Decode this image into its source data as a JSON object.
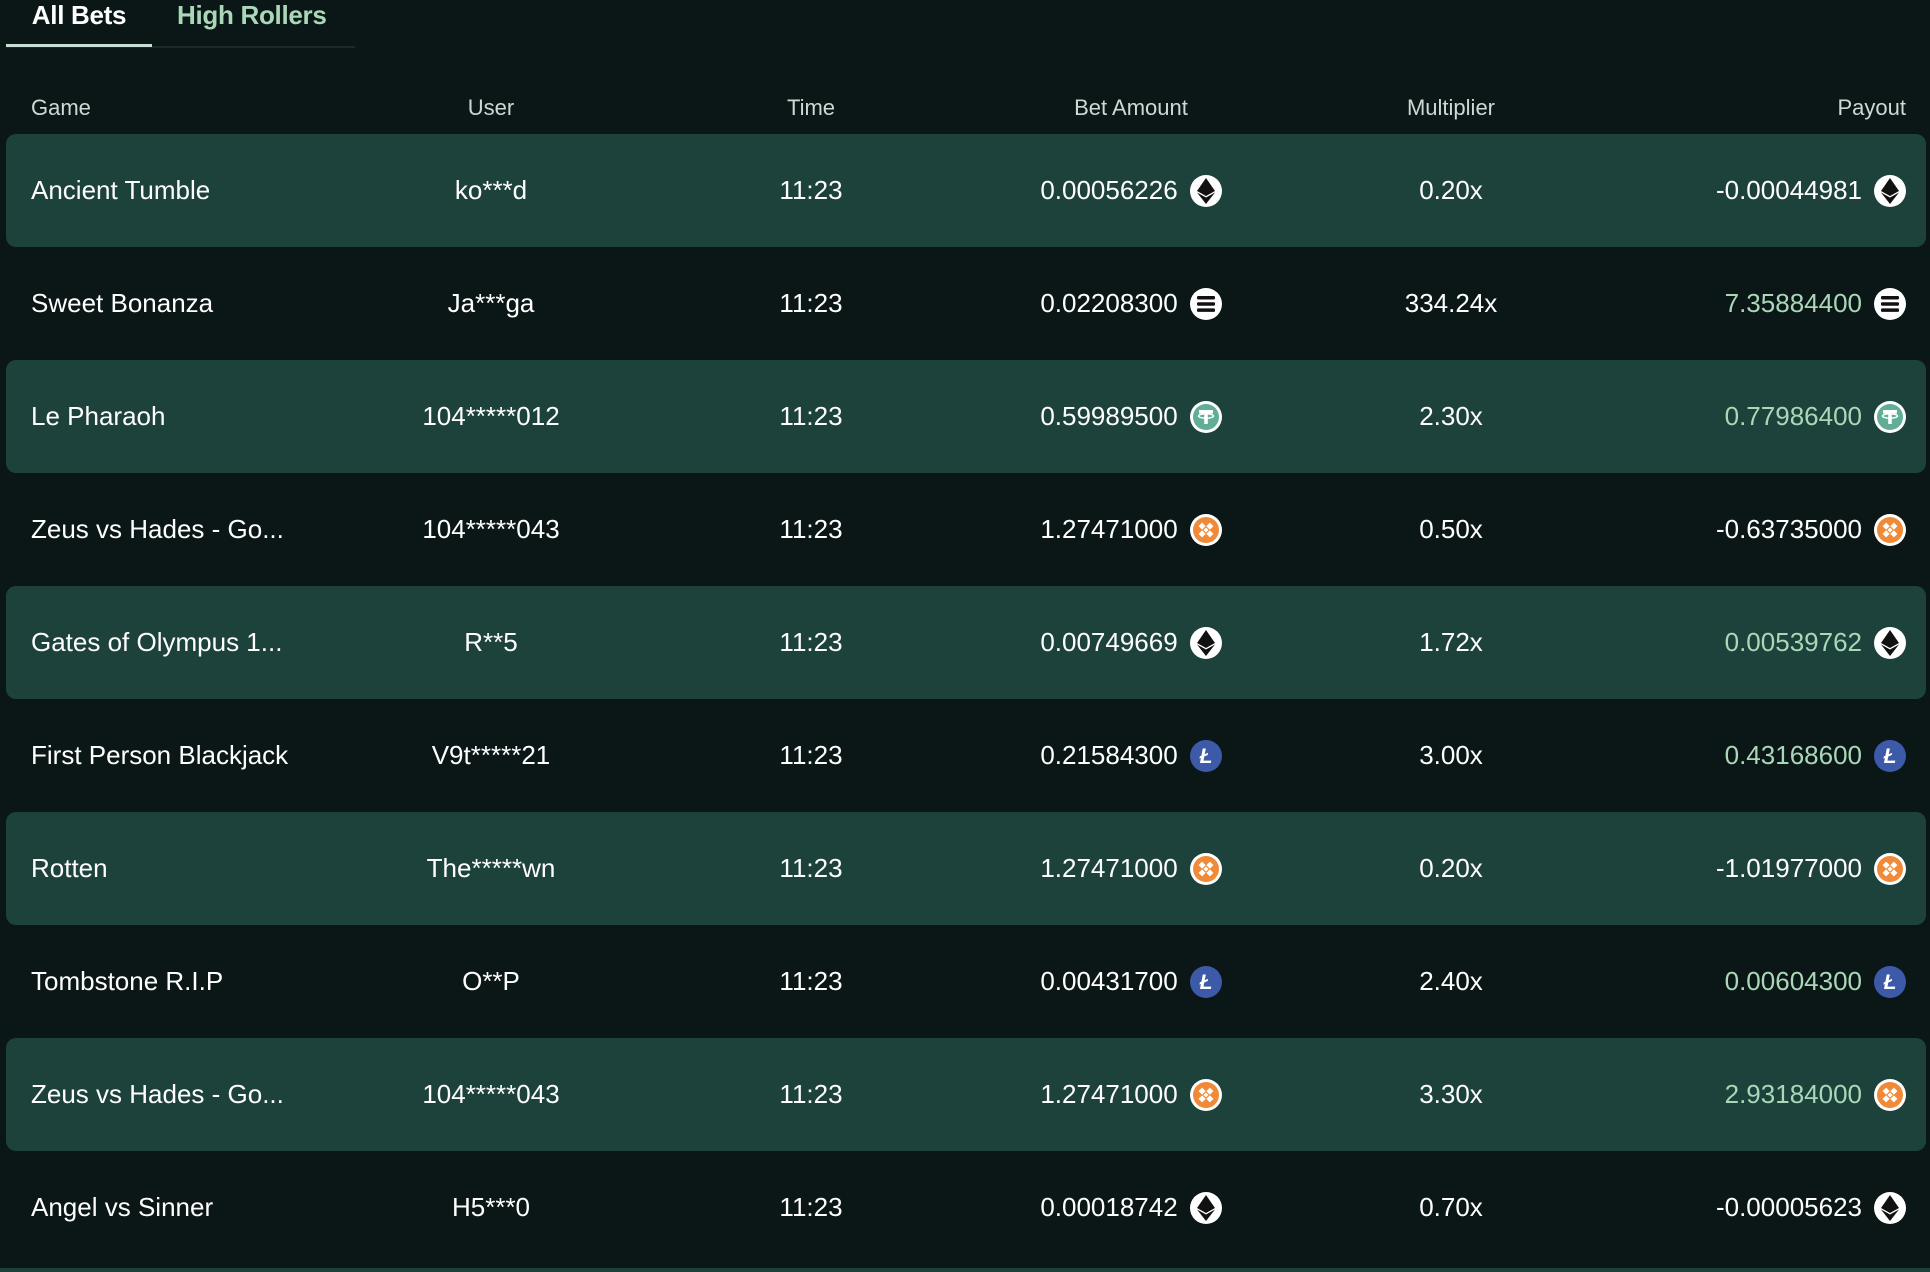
{
  "tabs": [
    {
      "label": "All Bets",
      "active": true
    },
    {
      "label": "High Rollers",
      "active": false
    }
  ],
  "columns": {
    "game": "Game",
    "user": "User",
    "time": "Time",
    "bet": "Bet Amount",
    "multiplier": "Multiplier",
    "payout": "Payout"
  },
  "colors": {
    "background": "#0b1716",
    "row_highlight": "#1d423b",
    "positive_payout": "#a9d7b8",
    "text": "#ffffff"
  },
  "rows": [
    {
      "game": "Ancient Tumble",
      "user": "ko***d",
      "time": "11:23",
      "bet": "0.00056226",
      "coin": "eth-icon",
      "multiplier": "0.20x",
      "payout": "-0.00044981",
      "positive": false
    },
    {
      "game": "Sweet Bonanza",
      "user": "Ja***ga",
      "time": "11:23",
      "bet": "0.02208300",
      "coin": "sol-icon",
      "multiplier": "334.24x",
      "payout": "7.35884400",
      "positive": true
    },
    {
      "game": "Le Pharaoh",
      "user": "104*****012",
      "time": "11:23",
      "bet": "0.59989500",
      "coin": "usdt-icon",
      "multiplier": "2.30x",
      "payout": "0.77986400",
      "positive": true
    },
    {
      "game": "Zeus vs Hades - Go...",
      "user": "104*****043",
      "time": "11:23",
      "bet": "1.27471000",
      "coin": "bnb-icon",
      "multiplier": "0.50x",
      "payout": "-0.63735000",
      "positive": false
    },
    {
      "game": "Gates of Olympus 1...",
      "user": "R**5",
      "time": "11:23",
      "bet": "0.00749669",
      "coin": "eth-icon",
      "multiplier": "1.72x",
      "payout": "0.00539762",
      "positive": true
    },
    {
      "game": "First Person Blackjack",
      "user": "V9t*****21",
      "time": "11:23",
      "bet": "0.21584300",
      "coin": "ltc-icon",
      "multiplier": "3.00x",
      "payout": "0.43168600",
      "positive": true
    },
    {
      "game": "Rotten",
      "user": "The*****wn",
      "time": "11:23",
      "bet": "1.27471000",
      "coin": "bnb-icon",
      "multiplier": "0.20x",
      "payout": "-1.01977000",
      "positive": false
    },
    {
      "game": "Tombstone R.I.P",
      "user": "O**P",
      "time": "11:23",
      "bet": "0.00431700",
      "coin": "ltc-icon",
      "multiplier": "2.40x",
      "payout": "0.00604300",
      "positive": true
    },
    {
      "game": "Zeus vs Hades - Go...",
      "user": "104*****043",
      "time": "11:23",
      "bet": "1.27471000",
      "coin": "bnb-icon",
      "multiplier": "3.30x",
      "payout": "2.93184000",
      "positive": true
    },
    {
      "game": "Angel vs Sinner",
      "user": "H5***0",
      "time": "11:23",
      "bet": "0.00018742",
      "coin": "eth-icon",
      "multiplier": "0.70x",
      "payout": "-0.00005623",
      "positive": false
    }
  ]
}
